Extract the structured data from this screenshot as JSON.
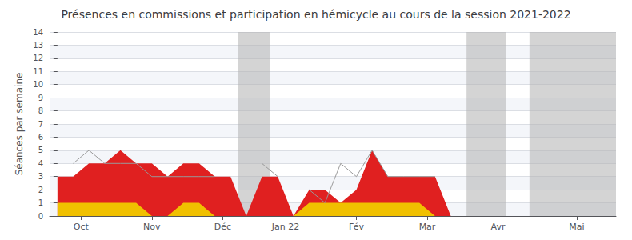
{
  "chart_data": {
    "type": "area",
    "title": "Présences en commissions et participation en hémicycle au cours de la session 2021-2022",
    "ylabel": "Séances par semaine",
    "x": [
      0,
      1,
      2,
      3,
      4,
      5,
      6,
      7,
      8,
      9,
      10,
      11,
      12,
      13,
      14,
      15,
      16,
      17,
      18,
      19,
      20,
      21,
      22,
      23,
      24,
      25,
      26,
      27,
      28,
      29,
      30,
      31,
      32,
      33,
      34,
      35
    ],
    "xlim": [
      -0.5,
      35.5
    ],
    "xticks": [
      {
        "value": 1.5,
        "label": "Oct"
      },
      {
        "value": 6.0,
        "label": "Nov"
      },
      {
        "value": 10.5,
        "label": "Déc"
      },
      {
        "value": 14.5,
        "label": "Jan 22"
      },
      {
        "value": 19.0,
        "label": "Fév"
      },
      {
        "value": 23.5,
        "label": "Mar"
      },
      {
        "value": 28.0,
        "label": "Avr"
      },
      {
        "value": 33.0,
        "label": "Mai"
      }
    ],
    "ylim": [
      0,
      14
    ],
    "yticks": [
      0,
      1,
      2,
      3,
      4,
      5,
      6,
      7,
      8,
      9,
      10,
      11,
      12,
      13,
      14
    ],
    "grid": true,
    "series": [
      {
        "type": "area",
        "color": "#e02020",
        "values": [
          3,
          3,
          4,
          4,
          5,
          4,
          4,
          3,
          4,
          4,
          3,
          3,
          0,
          3,
          3,
          0,
          2,
          2,
          1,
          2,
          5,
          3,
          3,
          3,
          3,
          0,
          0,
          0,
          0,
          0,
          0,
          0,
          0,
          0,
          0,
          0
        ]
      },
      {
        "type": "area",
        "color": "#f0c000",
        "values": [
          1,
          1,
          1,
          1,
          1,
          1,
          0,
          0,
          1,
          1,
          0,
          0,
          0,
          0,
          0,
          0,
          1,
          1,
          1,
          1,
          1,
          1,
          1,
          1,
          0,
          0,
          0,
          0,
          0,
          0,
          0,
          0,
          0,
          0,
          0,
          0
        ]
      },
      {
        "type": "line",
        "color": "#999999",
        "values": [
          null,
          4,
          5,
          4,
          4,
          4,
          3,
          3,
          3,
          3,
          3,
          null,
          null,
          4,
          3,
          null,
          2,
          1,
          4,
          3,
          5,
          3,
          3,
          3,
          3,
          null,
          null,
          null,
          null,
          null,
          null,
          null,
          null,
          null,
          null,
          null
        ]
      }
    ],
    "vacation": {
      "ranges": [
        [
          11.5,
          13.5
        ],
        [
          26.0,
          28.5
        ],
        [
          30.0,
          35.5
        ]
      ],
      "color": "#b0b0b0"
    }
  }
}
